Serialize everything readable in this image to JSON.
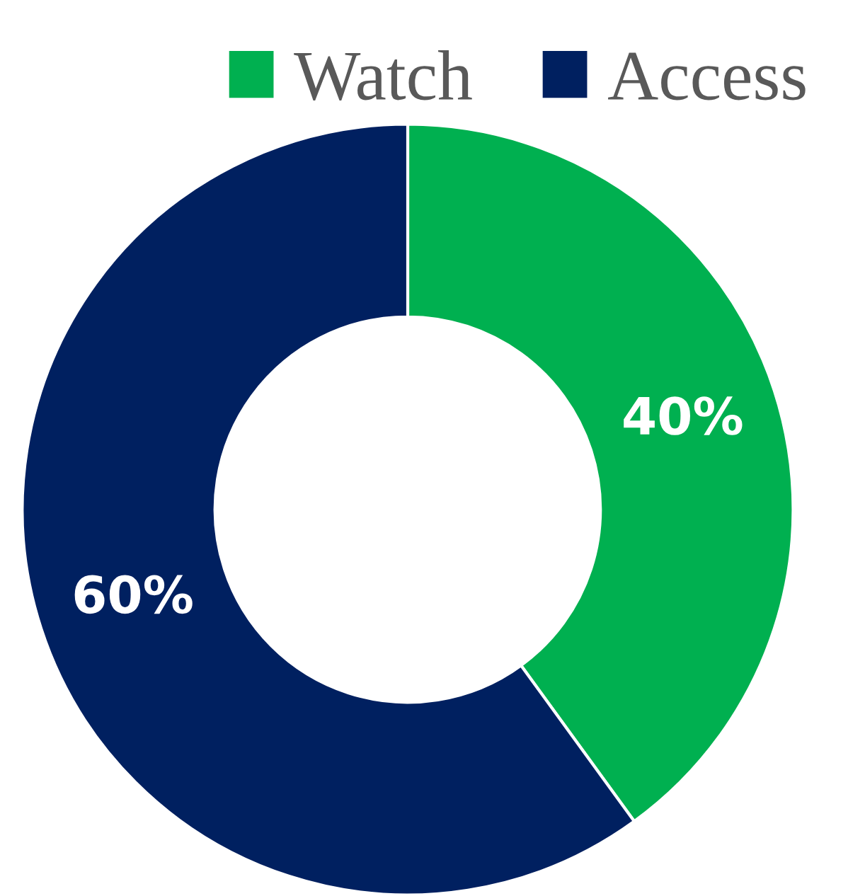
{
  "chart_data": {
    "type": "donut",
    "categories": [
      "Watch",
      "Access"
    ],
    "values": [
      40,
      60
    ],
    "colors": [
      "#00b050",
      "#002060"
    ],
    "value_labels": [
      "40%",
      "60%"
    ],
    "legend": "top"
  }
}
